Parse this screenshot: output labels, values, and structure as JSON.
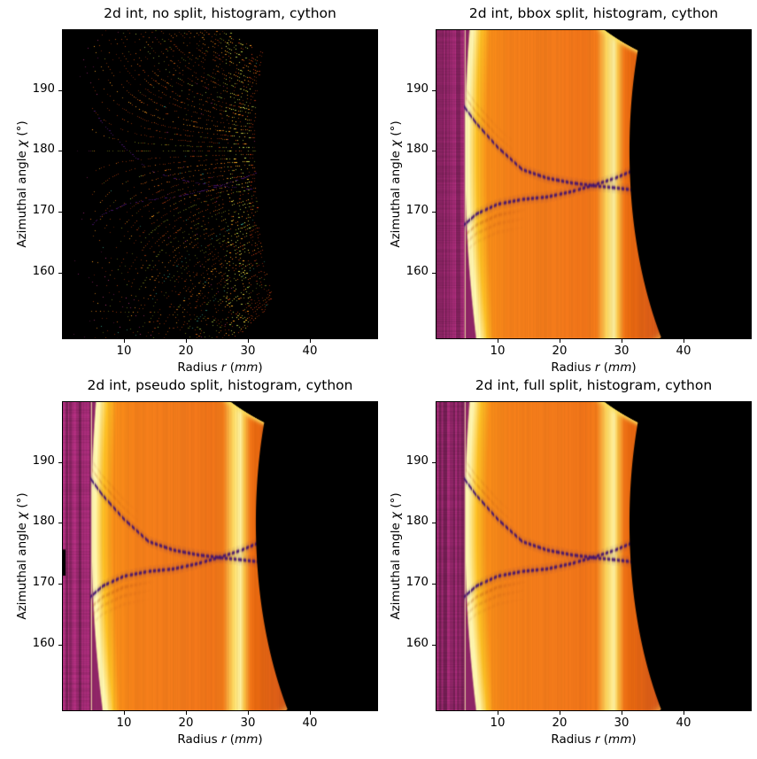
{
  "panels": [
    {
      "id": "no-split",
      "title": "2d int, no split, histogram, cython",
      "render": "sparse",
      "notch": false
    },
    {
      "id": "bbox-split",
      "title": "2d int, bbox split, histogram, cython",
      "render": "filled",
      "notch": false
    },
    {
      "id": "pseudo-split",
      "title": "2d int, pseudo split, histogram, cython",
      "render": "filled",
      "notch": true
    },
    {
      "id": "full-split",
      "title": "2d int, full split, histogram, cython",
      "render": "filled",
      "notch": false
    }
  ],
  "labels": {
    "xlabel_parts": [
      "Radius ",
      "r",
      " (",
      "mm",
      ")"
    ],
    "ylabel_parts": [
      "Azimuthal angle ",
      "χ",
      " (°)"
    ]
  },
  "axes": {
    "xlim": [
      0,
      51
    ],
    "ylim": [
      149,
      200
    ],
    "xticks": [
      10,
      20,
      30,
      40
    ],
    "yticks": [
      160,
      170,
      180,
      190
    ]
  },
  "chart_data": {
    "type": "heatmap",
    "panels": [
      "2d int, no split, histogram, cython",
      "2d int, bbox split, histogram, cython",
      "2d int, pseudo split, histogram, cython",
      "2d int, full split, histogram, cython"
    ],
    "xlabel": "Radius r (mm)",
    "ylabel": "Azimuthal angle χ (°)",
    "xlim": [
      0,
      51
    ],
    "ylim": [
      149,
      200
    ],
    "xticks": [
      10,
      20,
      30,
      40
    ],
    "yticks": [
      160,
      170,
      180,
      190
    ],
    "colormap": "inferno",
    "colors": {
      "background": "#000000",
      "mask_purple": "#8e2566",
      "hot_orange": "#f0781a",
      "ring_bright": "#fdf4ae",
      "shadow_dark": "#40116e",
      "ripple_dark": "#b04a12",
      "edge_fringe": "#fbe15e"
    },
    "radial_profile": [
      [
        4.85,
        "#fdf4ae"
      ],
      [
        5.35,
        "#fdf4ae"
      ],
      [
        6.6,
        "#fbbf25"
      ],
      [
        8.3,
        "#f68c18"
      ],
      [
        12,
        "#f27e19"
      ],
      [
        20,
        "#f0781a"
      ],
      [
        24,
        "#ee7318"
      ],
      [
        26,
        "#f17a19"
      ],
      [
        27.6,
        "#fbd65e"
      ],
      [
        28.8,
        "#fcee9e"
      ],
      [
        29.4,
        "#f8c347"
      ],
      [
        30.4,
        "#ef7417"
      ],
      [
        31.2,
        "#e8690f"
      ],
      [
        36,
        "#d4581a"
      ]
    ],
    "features": {
      "beam_mask_band_mm": [
        0,
        4.6
      ],
      "bright_rings_mm": [
        5.0,
        28.8
      ],
      "detector_edge": {
        "r_left_mm": 31.35,
        "h_top_mm": 9.29,
        "h_bottom_mm": 18.6
      },
      "beamstop_arm_shadow": {
        "upper_branch_r_chi": [
          [
            4.3,
            187.7
          ],
          [
            6.5,
            184.6
          ],
          [
            10,
            180.6
          ],
          [
            14,
            176.9
          ],
          [
            18,
            175.5
          ],
          [
            22,
            174.7
          ],
          [
            26,
            174.2
          ],
          [
            29,
            173.9
          ],
          [
            31.5,
            173.6
          ]
        ],
        "lower_branch_r_chi": [
          [
            4.7,
            167.9
          ],
          [
            6.6,
            169.6
          ],
          [
            10,
            171.2
          ],
          [
            14,
            172.0
          ],
          [
            18,
            172.4
          ],
          [
            22,
            173.3
          ],
          [
            26,
            174.5
          ],
          [
            29,
            175.5
          ],
          [
            31.5,
            176.6
          ]
        ],
        "dash_period_mm": 0.75
      },
      "pseudo_split_notch": {
        "chi_range": [
          171.3,
          175.6
        ],
        "r_range": [
          0,
          0.6
        ]
      },
      "sparse_palette": [
        [
          "#6e2408",
          28
        ],
        [
          "#7e2d0a",
          12
        ],
        [
          "#8c3209",
          10
        ],
        [
          "#a14a0e",
          14
        ],
        [
          "#b45c10",
          10
        ],
        [
          "#d0801a",
          5
        ],
        [
          "#5c6212",
          11
        ],
        [
          "#7e8f2f",
          5
        ],
        [
          "#8f2a5a",
          3
        ],
        [
          "#2a7a68",
          2
        ]
      ],
      "sparse_knee_palette": [
        [
          "#8f2a5a",
          30
        ],
        [
          "#6a7a20",
          25
        ],
        [
          "#5c1040",
          12
        ],
        [
          "#2a7a68",
          8
        ],
        [
          "#7e2d0a",
          25
        ]
      ],
      "sparse_ring_palette": [
        [
          "#9aa43a",
          1
        ],
        [
          "#b8a832",
          1
        ],
        [
          "#7e8f2f",
          1
        ],
        [
          "#d0801a",
          1
        ]
      ],
      "sparse_red_palette": [
        [
          "#a02c0c",
          1
        ],
        [
          "#c03a10",
          1
        ],
        [
          "#8a2a10",
          1
        ]
      ],
      "sparse_bright_palette": [
        [
          "#d8861a",
          1
        ],
        [
          "#e09a28",
          1
        ]
      ],
      "sparse_mask_palette": [
        [
          "#5c1847",
          1
        ],
        [
          "#7a2058",
          1
        ],
        [
          "#3f1030",
          1
        ]
      ]
    }
  }
}
